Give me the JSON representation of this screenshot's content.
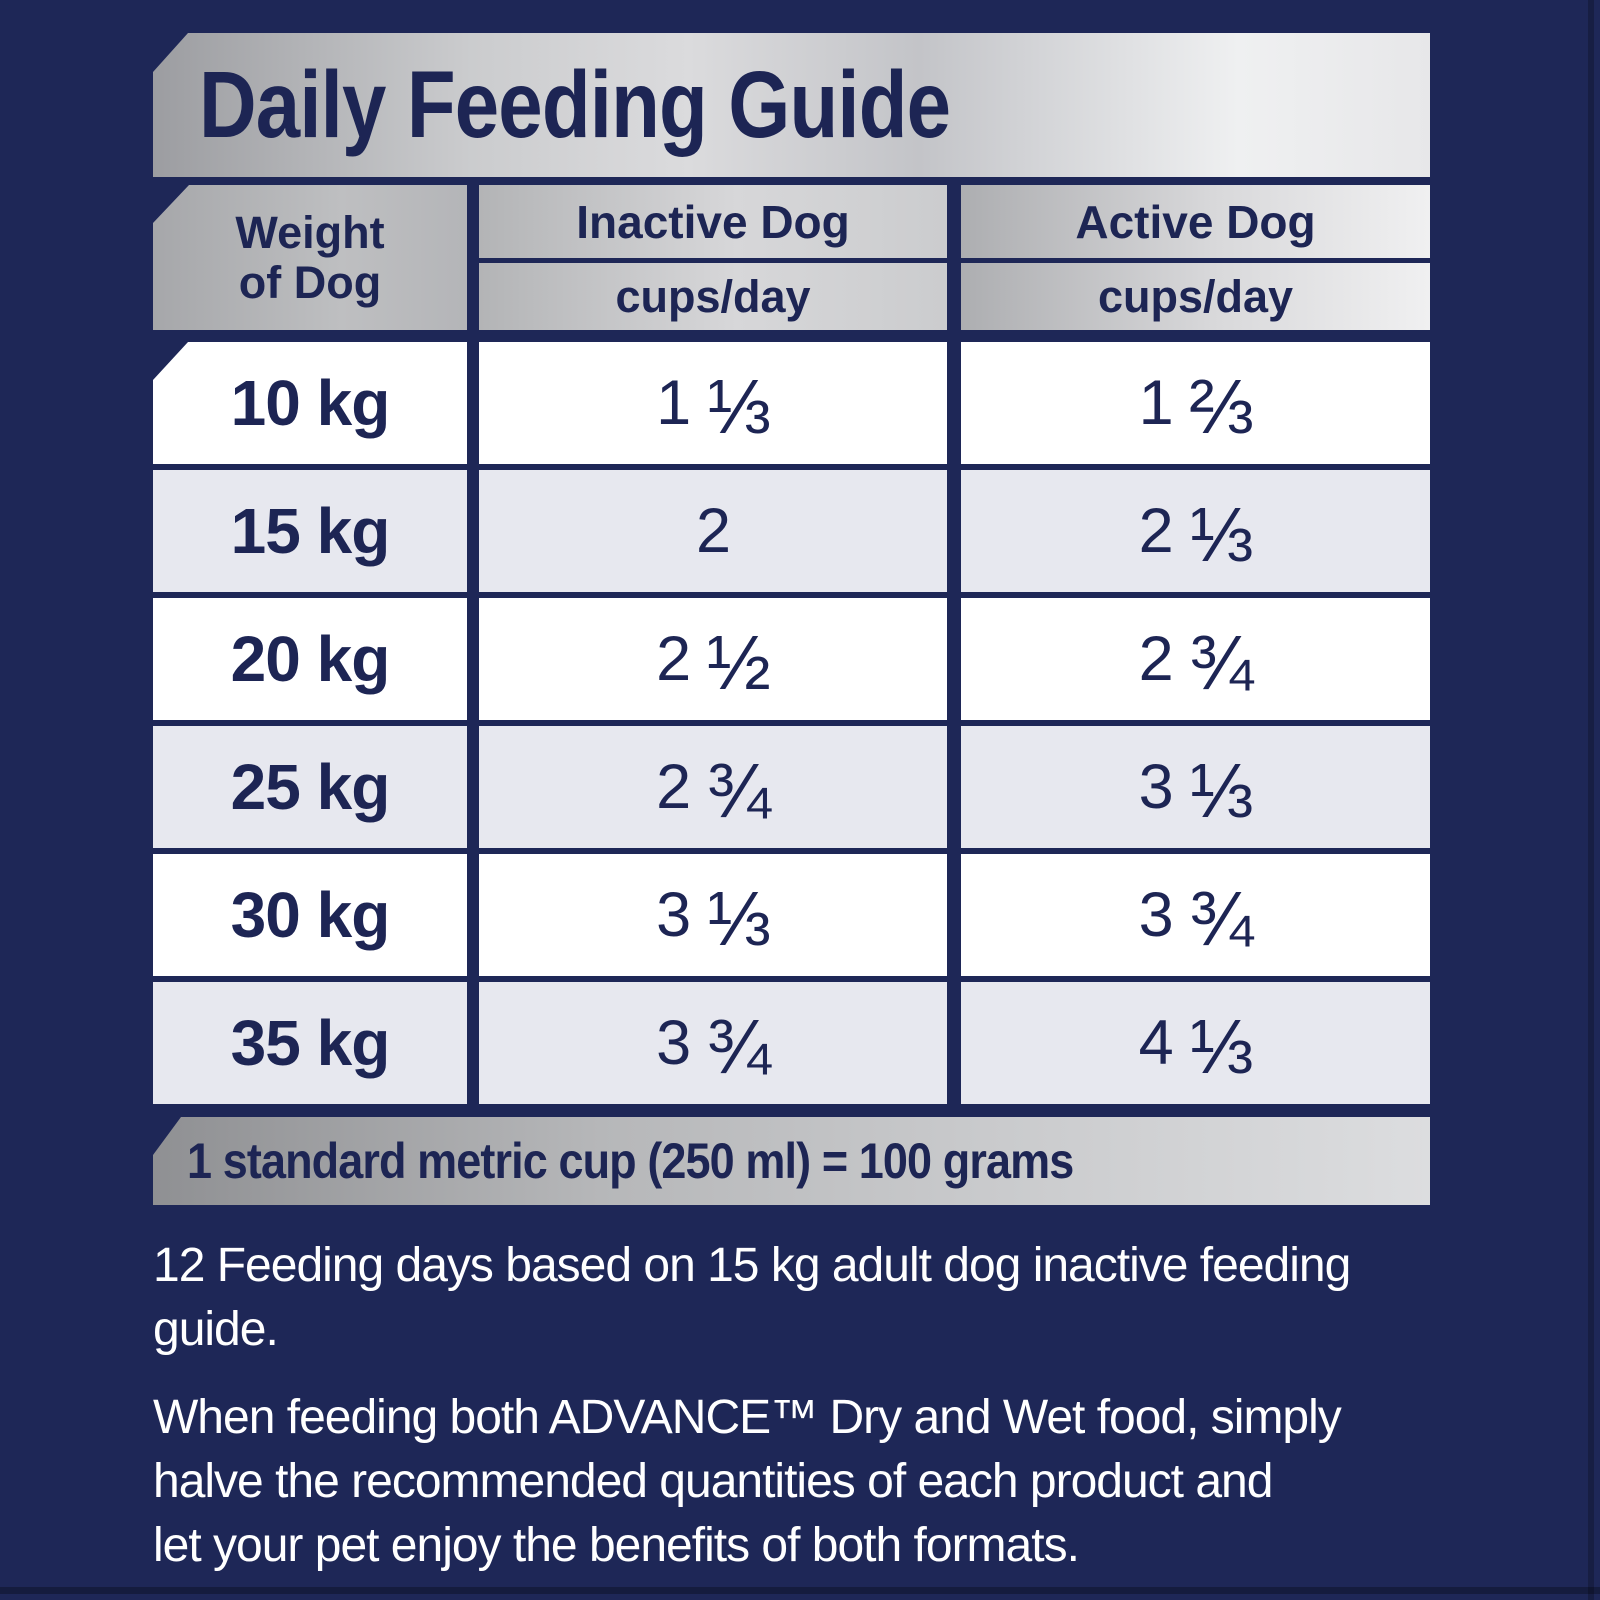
{
  "colors": {
    "navy": "#1e2757",
    "ink": "#1d2554",
    "row_alt": "#e7e8ef",
    "white": "#ffffff",
    "silver_dark": "#8f9093",
    "silver_light": "#f0f0f1"
  },
  "header": {
    "title": "Daily Feeding Guide"
  },
  "table": {
    "weight_header": "Weight\nof Dog",
    "columns": [
      {
        "label": "Inactive Dog",
        "unit": "cups/day"
      },
      {
        "label": "Active Dog",
        "unit": "cups/day"
      }
    ],
    "rows": [
      {
        "weight": "10 kg",
        "inactive_whole": "1",
        "inactive_frac": "⅓",
        "active_whole": "1",
        "active_frac": "⅔"
      },
      {
        "weight": "15 kg",
        "inactive_whole": "2",
        "inactive_frac": "",
        "active_whole": "2",
        "active_frac": "⅓"
      },
      {
        "weight": "20 kg",
        "inactive_whole": "2",
        "inactive_frac": "½",
        "active_whole": "2",
        "active_frac": "¾"
      },
      {
        "weight": "25 kg",
        "inactive_whole": "2",
        "inactive_frac": "¾",
        "active_whole": "3",
        "active_frac": "⅓"
      },
      {
        "weight": "30 kg",
        "inactive_whole": "3",
        "inactive_frac": "⅓",
        "active_whole": "3",
        "active_frac": "¾"
      },
      {
        "weight": "35 kg",
        "inactive_whole": "3",
        "inactive_frac": "¾",
        "active_whole": "4",
        "active_frac": "⅓"
      }
    ],
    "footnote": "1 standard metric cup (250 ml) = 100 grams"
  },
  "notes": {
    "note1": "12 Feeding days based on 15 kg adult dog inactive feeding\nguide.",
    "note2": "When feeding both ADVANCE™ Dry and Wet food, simply\nhalve the recommended quantities of each product and\nlet your pet enjoy the benefits of both formats."
  },
  "chart_data": {
    "type": "table",
    "title": "Daily Feeding Guide",
    "columns": [
      "Weight of Dog",
      "Inactive Dog cups/day",
      "Active Dog cups/day"
    ],
    "rows": [
      [
        "10 kg",
        "1 1/3",
        "1 2/3"
      ],
      [
        "15 kg",
        "2",
        "2 1/3"
      ],
      [
        "20 kg",
        "2 1/2",
        "2 3/4"
      ],
      [
        "25 kg",
        "2 3/4",
        "3 1/3"
      ],
      [
        "30 kg",
        "3 1/3",
        "3 3/4"
      ],
      [
        "35 kg",
        "3 3/4",
        "4 1/3"
      ]
    ],
    "footnote": "1 standard metric cup (250 ml) = 100 grams"
  }
}
